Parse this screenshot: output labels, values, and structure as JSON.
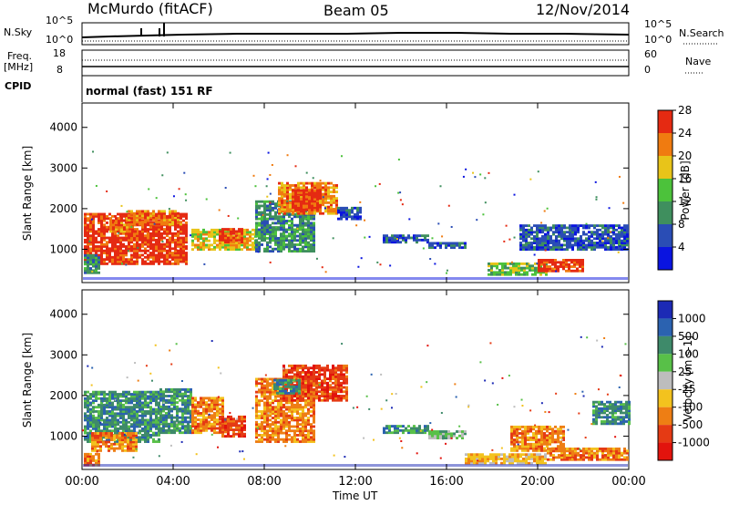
{
  "header": {
    "radar": "McMurdo (fitACF)",
    "beam": "Beam 05",
    "date": "12/Nov/2014"
  },
  "top_panel": {
    "left_label_top": "N.Sky",
    "left_ticks": [
      "10^5",
      "10^0"
    ],
    "right_ticks": [
      "10^5",
      "10^0"
    ],
    "right_label": "N.Search",
    "freq_label": "Freq.",
    "freq_unit": "[MHz]",
    "freq_ticks": [
      "18",
      "8"
    ],
    "nave_ticks": [
      "60",
      "0"
    ],
    "nave_label": "Nave",
    "cpid_label": "CPID",
    "cpid_value": "normal (fast) 151 RF"
  },
  "x_axis": {
    "label": "Time UT",
    "ticks": [
      "00:00",
      "04:00",
      "08:00",
      "12:00",
      "16:00",
      "20:00",
      "00:00"
    ]
  },
  "chart_data": [
    {
      "type": "heatmap",
      "title": "Power",
      "ylabel": "Slant Range [km]",
      "y_ticks": [
        "1000",
        "2000",
        "3000",
        "4000"
      ],
      "colorbar_label": "Power [dB]",
      "colorbar_ticks": [
        "4",
        "8",
        "12",
        "16",
        "20",
        "24",
        "28"
      ],
      "colors": [
        "#0a14e0",
        "#2a4db5",
        "#3f8f5e",
        "#4cc23b",
        "#e8c419",
        "#f07b10",
        "#e52a12"
      ],
      "grid": false
    },
    {
      "type": "heatmap",
      "title": "Velocity",
      "ylabel": "Slant Range [km]",
      "y_ticks": [
        "1000",
        "2000",
        "3000",
        "4000"
      ],
      "colorbar_label": "Velocity [m s-1]",
      "colorbar_ticks": [
        "1000",
        "500",
        "100",
        "25",
        "-25",
        "-100",
        "-500",
        "-1000"
      ],
      "colors": [
        "#1c2ab5",
        "#2b62b0",
        "#3e8a6a",
        "#58c048",
        "#bdbdbd",
        "#f3c21e",
        "#ee7e14",
        "#e53a14",
        "#e2130d"
      ],
      "grid": false
    }
  ]
}
